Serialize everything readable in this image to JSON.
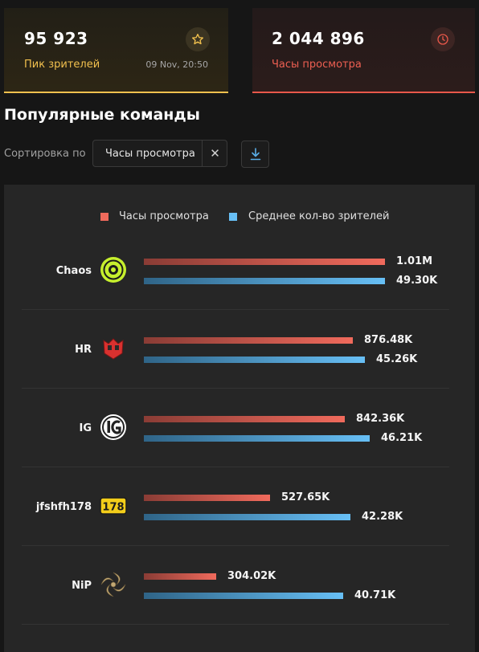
{
  "stats": {
    "peak_viewers": {
      "value": "95 923",
      "label": "Пик зрителей",
      "date": "09 Nov, 20:50",
      "icon": "star-icon",
      "color": "#f2c14e"
    },
    "hours_watched": {
      "value": "2 044 896",
      "label": "Часы просмотра",
      "icon": "clock-icon",
      "color": "#e8584a"
    }
  },
  "section": {
    "title": "Популярные команды"
  },
  "sort": {
    "label": "Сортировка по",
    "value": "Часы просмотра",
    "clear_icon": "✕",
    "download_icon": "download-icon"
  },
  "chart_data": {
    "type": "bar",
    "orientation": "horizontal",
    "categories": [
      "Chaos",
      "HR",
      "IG",
      "jfshfh178",
      "NiP"
    ],
    "series": [
      {
        "name": "Часы просмотра",
        "color": "#f06a5c",
        "values": [
          1010000,
          876480,
          842360,
          527650,
          304020
        ],
        "labels": [
          "1.01M",
          "876.48K",
          "842.36K",
          "527.65K",
          "304.02K"
        ]
      },
      {
        "name": "Среднее кол-во зрителей",
        "color": "#67bff5",
        "values": [
          49300,
          45260,
          46210,
          42280,
          40710
        ],
        "labels": [
          "49.30K",
          "45.26K",
          "46.21K",
          "42.28K",
          "40.71K"
        ]
      }
    ],
    "logos": [
      "chaos-logo",
      "hr-logo",
      "ig-logo",
      "178-logo",
      "nip-logo"
    ],
    "legend": "top-center",
    "grid": false
  }
}
